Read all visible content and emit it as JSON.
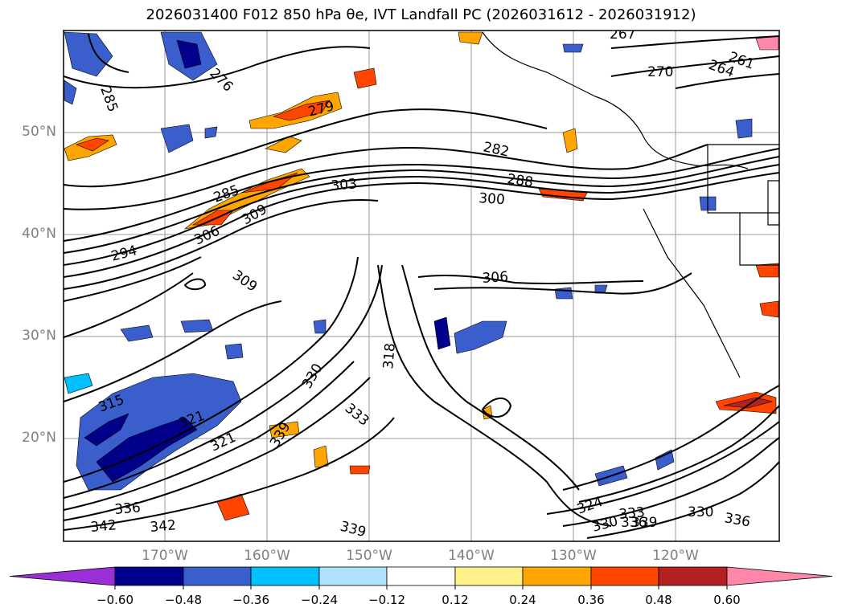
{
  "title": "2026031400 F012 850 hPa θe, IVT Landfall PC (2026031612 - 2026031912)",
  "lat_labels": [
    "50°N",
    "40°N",
    "30°N",
    "20°N"
  ],
  "lon_labels": [
    "170°W",
    "160°W",
    "150°W",
    "140°W",
    "130°W",
    "120°W"
  ],
  "contour_labels": [
    "285",
    "279",
    "276",
    "267",
    "270",
    "264",
    "261",
    "282",
    "288",
    "285",
    "303",
    "300",
    "294",
    "306",
    "309",
    "309",
    "306",
    "318",
    "315",
    "321",
    "321",
    "330",
    "333",
    "339",
    "336",
    "342",
    "342",
    "339",
    "324",
    "330",
    "333",
    "336",
    "339",
    "330",
    "336"
  ],
  "colorbar": {
    "ticks": [
      "−0.60",
      "−0.48",
      "−0.36",
      "−0.24",
      "−0.12",
      "0.12",
      "0.24",
      "0.36",
      "0.48",
      "0.60"
    ],
    "colors": [
      "#9b30d9",
      "#00008b",
      "#3a5fcd",
      "#00bfff",
      "#b0e2ff",
      "#ffffff",
      "#fff08a",
      "#ffa500",
      "#ff4500",
      "#b22222",
      "#ff88aa"
    ]
  }
}
